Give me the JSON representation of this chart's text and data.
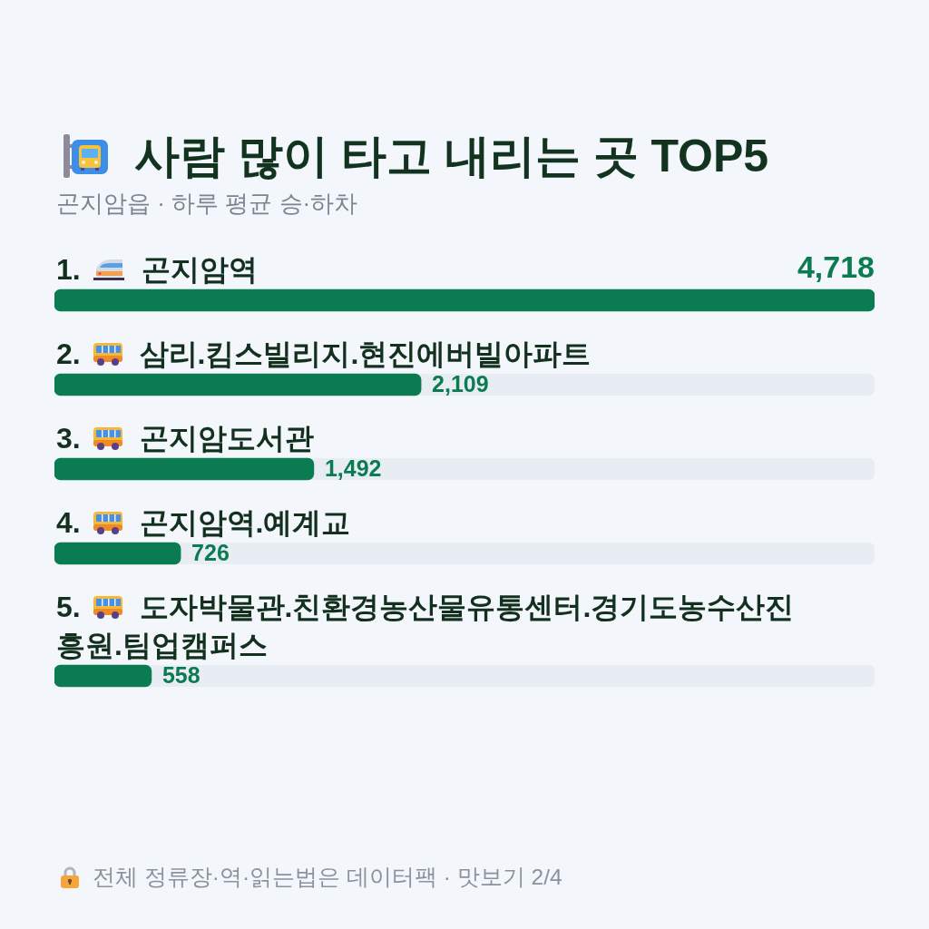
{
  "chart_data": {
    "type": "bar",
    "orientation": "horizontal",
    "title": "사람 많이 타고 내리는 곳 TOP5",
    "subtitle": "곤지암읍 · 하루 평균 승·하차",
    "categories": [
      "1. 곤지암역",
      "2. 삼리.킴스빌리지.현진에버빌아파트",
      "3. 곤지암도서관",
      "4. 곤지암역.예계교",
      "5. 도자박물관.친환경농산물유통센터.경기도농수산진흥원.팀업캠퍼스"
    ],
    "values": [
      4718,
      2109,
      1492,
      726,
      558
    ],
    "value_labels": [
      "4,718",
      "2,109",
      "1,492",
      "726",
      "558"
    ],
    "color": "#0b7b52",
    "tick_labels": "y",
    "annotations": [
      "전체 정류장·역·읽는법은 데이터팩 · 맛보기 2/4"
    ]
  }
}
